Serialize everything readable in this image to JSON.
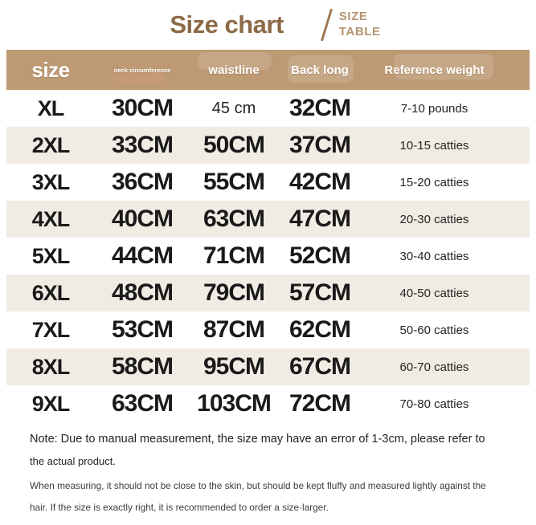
{
  "title": {
    "main": "Size chart",
    "side_line1": "SIZE",
    "side_line2": "TABLE"
  },
  "chart_data": {
    "type": "table",
    "title": "Size chart / SIZE TABLE",
    "columns": [
      "size",
      "neck circumference",
      "waistline",
      "Back long",
      "Reference weight"
    ],
    "rows": [
      [
        "XL",
        "30CM",
        "45 cm",
        "32CM",
        "7-10 pounds"
      ],
      [
        "2XL",
        "33CM",
        "50CM",
        "37CM",
        "10-15 catties"
      ],
      [
        "3XL",
        "36CM",
        "55CM",
        "42CM",
        "15-20 catties"
      ],
      [
        "4XL",
        "40CM",
        "63CM",
        "47CM",
        "20-30 catties"
      ],
      [
        "5XL",
        "44CM",
        "71CM",
        "52CM",
        "30-40 catties"
      ],
      [
        "6XL",
        "48CM",
        "79CM",
        "57CM",
        "40-50 catties"
      ],
      [
        "7XL",
        "53CM",
        "87CM",
        "62CM",
        "50-60 catties"
      ],
      [
        "8XL",
        "58CM",
        "95CM",
        "67CM",
        "60-70 catties"
      ],
      [
        "9XL",
        "63CM",
        "103CM",
        "72CM",
        "70-80 catties"
      ]
    ]
  },
  "notes": {
    "line1": "Note: Due to manual measurement, the size may have an error of 1-3cm, please refer to",
    "line2": "the actual product.",
    "line3": "When measuring, it should not be close to the skin, but should be kept fluffy and measured lightly against the",
    "line4": "hair. If the size is exactly right, it is recommended to order a size·larger."
  },
  "colors": {
    "header_bg": "#bd9a74",
    "row_alt_bg": "#f1ece3",
    "title_brown": "#8c6a46",
    "subtitle_tan": "#b3946f",
    "data_text": "#1a1a1a"
  }
}
